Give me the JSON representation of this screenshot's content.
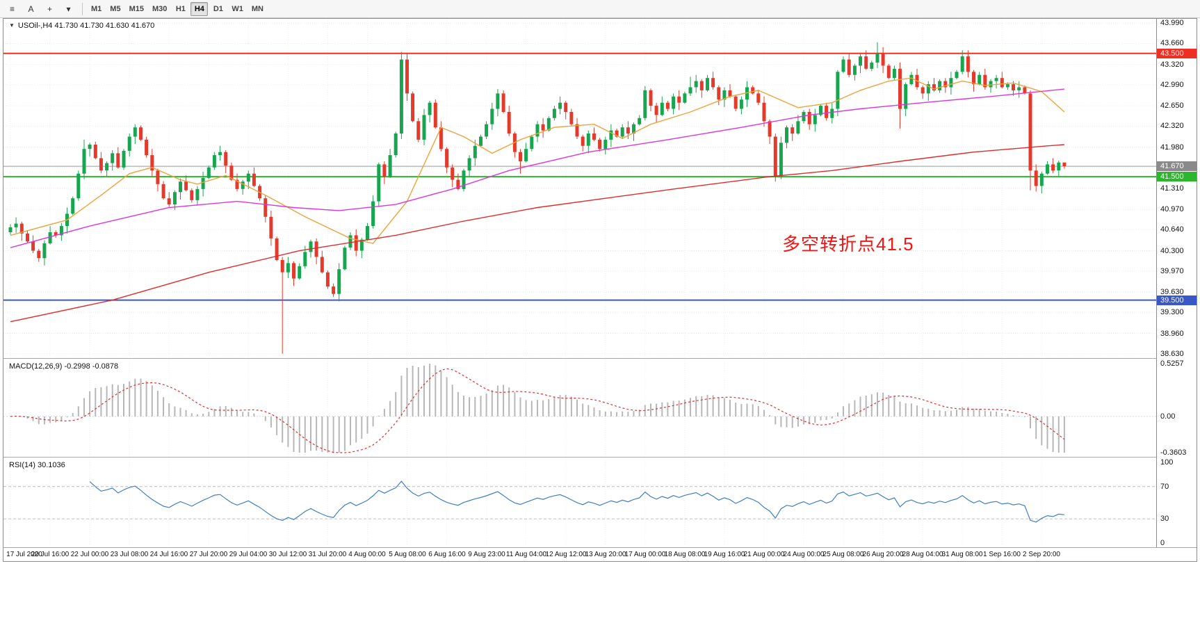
{
  "toolbar": {
    "tools": [
      {
        "name": "chart-list-icon",
        "glyph": "≡"
      },
      {
        "name": "text-tool-button",
        "glyph": "A"
      },
      {
        "name": "crosshair-tool-button",
        "glyph": "+"
      },
      {
        "name": "drawing-tools-dropdown",
        "glyph": "▾"
      }
    ],
    "timeframes": [
      "M1",
      "M5",
      "M15",
      "M30",
      "H1",
      "H4",
      "D1",
      "W1",
      "MN"
    ],
    "active_timeframe": "H4"
  },
  "chart": {
    "menu_icon": "▼",
    "title": "USOil-,H4 41.730 41.730 41.630 41.670",
    "annotation": "多空转折点41.5",
    "price_range": [
      38.56,
      44.06
    ],
    "grid_prices": [
      43.99,
      43.66,
      43.32,
      42.99,
      42.65,
      42.32,
      41.98,
      41.65,
      41.31,
      40.97,
      40.64,
      40.3,
      39.97,
      39.63,
      39.3,
      38.96,
      38.63
    ],
    "y_ticks": [
      {
        "label": "43.990",
        "price": 43.99
      },
      {
        "label": "43.660",
        "price": 43.66
      },
      {
        "label": "43.320",
        "price": 43.32
      },
      {
        "label": "42.990",
        "price": 42.99
      },
      {
        "label": "42.650",
        "price": 42.65
      },
      {
        "label": "42.320",
        "price": 42.32
      },
      {
        "label": "41.980",
        "price": 41.98
      },
      {
        "label": "41.310",
        "price": 41.31
      },
      {
        "label": "40.970",
        "price": 40.97
      },
      {
        "label": "40.640",
        "price": 40.64
      },
      {
        "label": "40.300",
        "price": 40.3
      },
      {
        "label": "39.970",
        "price": 39.97
      },
      {
        "label": "39.630",
        "price": 39.63
      },
      {
        "label": "39.300",
        "price": 39.3
      },
      {
        "label": "38.960",
        "price": 38.96
      },
      {
        "label": "38.630",
        "price": 38.63
      }
    ],
    "special_labels": [
      {
        "text": "43.500",
        "price": 43.5,
        "bg": "#ee3024"
      },
      {
        "text": "41.670",
        "price": 41.67,
        "bg": "#8a8a8a"
      },
      {
        "text": "41.500",
        "price": 41.5,
        "bg": "#2eb52e"
      },
      {
        "text": "39.500",
        "price": 39.5,
        "bg": "#3a57c8"
      }
    ],
    "hlines": [
      {
        "name": "resistance-line",
        "price": 43.5,
        "color": "#ee3024",
        "width": 2
      },
      {
        "name": "bid-price-line",
        "price": 41.67,
        "color": "#9a9a9a",
        "width": 1
      },
      {
        "name": "support-line",
        "price": 41.5,
        "color": "#2eb52e",
        "width": 2
      },
      {
        "name": "lower-support-line",
        "price": 39.5,
        "color": "#3a57c8",
        "width": 2
      }
    ]
  },
  "macd": {
    "label": "MACD(12,26,9) -0.2998 -0.0878",
    "scale": {
      "max": "0.5257",
      "zero": "0.00",
      "min": "-0.3603"
    }
  },
  "rsi": {
    "label": "RSI(14) 30.1036",
    "scale": {
      "max": "100",
      "upper": "70",
      "lower": "30",
      "min": "0"
    }
  },
  "x_labels": [
    "17 Jul 2020",
    "20 Jul 16:00",
    "22 Jul 00:00",
    "23 Jul 08:00",
    "24 Jul 16:00",
    "27 Jul 20:00",
    "29 Jul 04:00",
    "30 Jul 12:00",
    "31 Jul 20:00",
    "4 Aug 00:00",
    "5 Aug 08:00",
    "6 Aug 16:00",
    "9 Aug 23:00",
    "11 Aug 04:00",
    "12 Aug 12:00",
    "13 Aug 20:00",
    "17 Aug 00:00",
    "18 Aug 08:00",
    "19 Aug 16:00",
    "21 Aug 00:00",
    "24 Aug 00:00",
    "25 Aug 08:00",
    "26 Aug 20:00",
    "28 Aug 04:00",
    "31 Aug 08:00",
    "1 Sep 16:00",
    "2 Sep 20:00"
  ],
  "chart_data": {
    "type": "candlestick",
    "symbol": "USOil-",
    "timeframe": "H4",
    "title": "USOil-,H4 41.730 41.730 41.630 41.670",
    "ylim": [
      38.56,
      44.06
    ],
    "open_first": 40.6,
    "closes": [
      40.68,
      40.74,
      40.58,
      40.45,
      40.3,
      40.18,
      40.42,
      40.6,
      40.55,
      40.7,
      40.9,
      41.15,
      41.55,
      41.95,
      42.02,
      41.8,
      41.6,
      41.72,
      41.88,
      41.65,
      41.92,
      42.15,
      42.3,
      42.1,
      41.85,
      41.6,
      41.38,
      41.15,
      41.05,
      41.25,
      41.42,
      41.28,
      41.12,
      41.3,
      41.48,
      41.65,
      41.85,
      41.9,
      41.68,
      41.45,
      41.3,
      41.42,
      41.55,
      41.35,
      41.15,
      40.85,
      40.5,
      40.15,
      39.95,
      40.1,
      39.85,
      40.05,
      40.28,
      40.45,
      40.2,
      39.95,
      39.72,
      39.6,
      40.0,
      40.35,
      40.55,
      40.3,
      40.48,
      40.7,
      41.1,
      41.7,
      41.5,
      41.85,
      42.2,
      43.4,
      42.85,
      42.4,
      42.1,
      42.5,
      42.7,
      42.3,
      41.95,
      41.65,
      41.45,
      41.3,
      41.6,
      41.8,
      42.0,
      42.15,
      42.35,
      42.6,
      42.85,
      42.55,
      42.2,
      41.9,
      41.75,
      41.95,
      42.15,
      42.35,
      42.25,
      42.45,
      42.6,
      42.7,
      42.55,
      42.35,
      42.15,
      42.0,
      42.2,
      42.1,
      41.95,
      42.1,
      42.25,
      42.15,
      42.3,
      42.2,
      42.35,
      42.45,
      42.9,
      42.65,
      42.5,
      42.7,
      42.6,
      42.8,
      42.7,
      42.85,
      42.95,
      43.05,
      42.9,
      43.1,
      42.95,
      42.75,
      42.9,
      42.8,
      42.6,
      42.75,
      42.95,
      42.85,
      42.7,
      42.4,
      42.15,
      41.5,
      42.05,
      42.3,
      42.2,
      42.4,
      42.55,
      42.35,
      42.5,
      42.65,
      42.45,
      42.6,
      43.2,
      43.4,
      43.15,
      43.3,
      43.45,
      43.25,
      43.35,
      43.5,
      43.3,
      43.1,
      43.25,
      42.6,
      43.0,
      43.15,
      42.95,
      42.85,
      43.0,
      42.9,
      43.05,
      42.95,
      43.1,
      43.2,
      43.45,
      43.2,
      43.0,
      43.15,
      42.95,
      43.05,
      43.1,
      42.95,
      43.0,
      42.9,
      42.95,
      42.85,
      41.6,
      41.35,
      41.55,
      41.7,
      41.6,
      41.73,
      41.67
    ],
    "high_overrides": {
      "13": 42.1,
      "22": 42.35,
      "69": 43.52,
      "86": 42.92,
      "112": 42.97,
      "120": 43.12,
      "153": 43.68,
      "168": 43.55,
      "186": 41.73
    },
    "low_overrides": {
      "5": 40.12,
      "48": 38.63,
      "57": 39.55,
      "90": 41.55,
      "135": 41.42,
      "157": 42.28,
      "180": 41.28,
      "186": 41.63
    },
    "ma_lines": [
      {
        "name": "ma-fast-orange",
        "color": "#eda33c",
        "points": [
          [
            0,
            40.55
          ],
          [
            10,
            40.8
          ],
          [
            16,
            41.2
          ],
          [
            21,
            41.55
          ],
          [
            25,
            41.65
          ],
          [
            30,
            41.45
          ],
          [
            33,
            41.38
          ],
          [
            38,
            41.52
          ],
          [
            45,
            41.2
          ],
          [
            52,
            40.85
          ],
          [
            60,
            40.5
          ],
          [
            64,
            40.42
          ],
          [
            70,
            41.1
          ],
          [
            76,
            42.3
          ],
          [
            80,
            42.15
          ],
          [
            85,
            41.88
          ],
          [
            90,
            42.1
          ],
          [
            96,
            42.3
          ],
          [
            103,
            42.35
          ],
          [
            108,
            42.12
          ],
          [
            113,
            42.35
          ],
          [
            120,
            42.55
          ],
          [
            127,
            42.8
          ],
          [
            132,
            42.9
          ],
          [
            139,
            42.62
          ],
          [
            145,
            42.7
          ],
          [
            150,
            42.9
          ],
          [
            155,
            43.05
          ],
          [
            159,
            43.1
          ],
          [
            163,
            42.92
          ],
          [
            168,
            43.05
          ],
          [
            172,
            42.98
          ],
          [
            177,
            43.02
          ],
          [
            182,
            42.88
          ],
          [
            186,
            42.55
          ]
        ]
      },
      {
        "name": "ma-mid-magenta",
        "color": "#dd35dd",
        "points": [
          [
            0,
            40.35
          ],
          [
            14,
            40.7
          ],
          [
            28,
            41.0
          ],
          [
            40,
            41.1
          ],
          [
            50,
            41.0
          ],
          [
            58,
            40.95
          ],
          [
            68,
            41.05
          ],
          [
            78,
            41.3
          ],
          [
            88,
            41.6
          ],
          [
            102,
            41.9
          ],
          [
            116,
            42.1
          ],
          [
            129,
            42.3
          ],
          [
            141,
            42.5
          ],
          [
            150,
            42.6
          ],
          [
            161,
            42.7
          ],
          [
            173,
            42.8
          ],
          [
            186,
            42.92
          ]
        ]
      },
      {
        "name": "ma-slow-red",
        "color": "#df2b2b",
        "points": [
          [
            0,
            39.15
          ],
          [
            18,
            39.5
          ],
          [
            35,
            39.95
          ],
          [
            51,
            40.3
          ],
          [
            68,
            40.55
          ],
          [
            80,
            40.78
          ],
          [
            93,
            41.0
          ],
          [
            105,
            41.15
          ],
          [
            117,
            41.3
          ],
          [
            134,
            41.5
          ],
          [
            145,
            41.6
          ],
          [
            157,
            41.75
          ],
          [
            170,
            41.9
          ],
          [
            183,
            42.0
          ],
          [
            186,
            42.02
          ]
        ]
      }
    ],
    "indicators": {
      "macd_params": [
        12,
        26,
        9
      ],
      "macd_range": [
        -0.3603,
        0.5257
      ],
      "rsi_period": 14
    }
  }
}
